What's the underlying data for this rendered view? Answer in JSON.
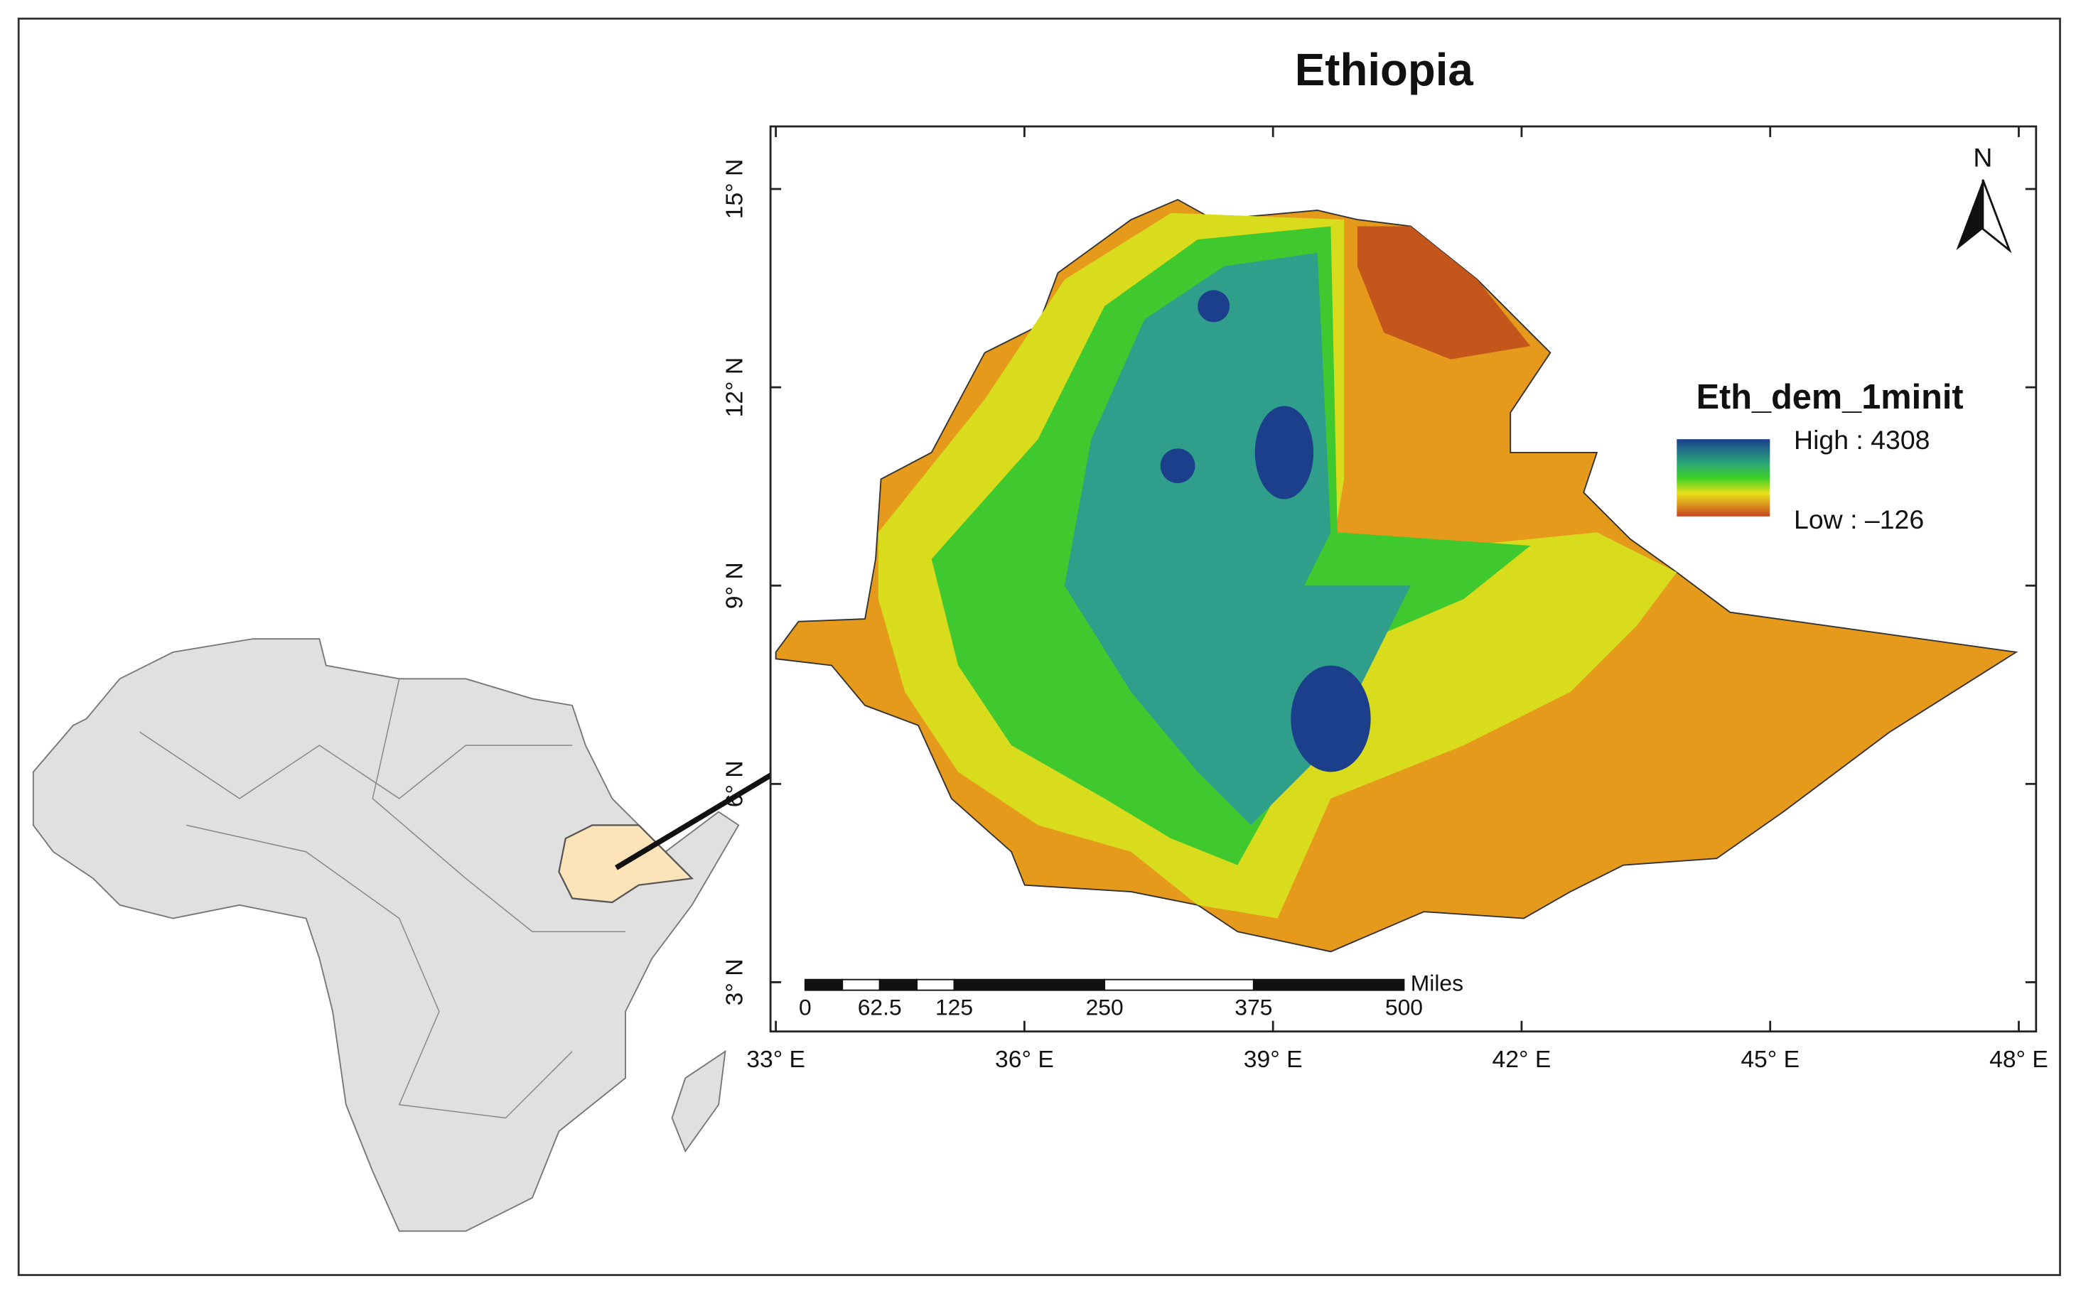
{
  "title": "Ethiopia",
  "legend": {
    "title": "Eth_dem_1minit",
    "high": "High : 4308",
    "low": "Low : –126"
  },
  "north": "N",
  "x_ticks": [
    "33° E",
    "36° E",
    "39° E",
    "42° E",
    "45° E",
    "48° E"
  ],
  "y_ticks": [
    "15° N",
    "12° N",
    "9° N",
    "6° N",
    "3° N"
  ],
  "scale_bar": {
    "labels": [
      "0",
      "62.5",
      "125",
      "250",
      "375",
      "500"
    ],
    "unit": "Miles"
  }
}
